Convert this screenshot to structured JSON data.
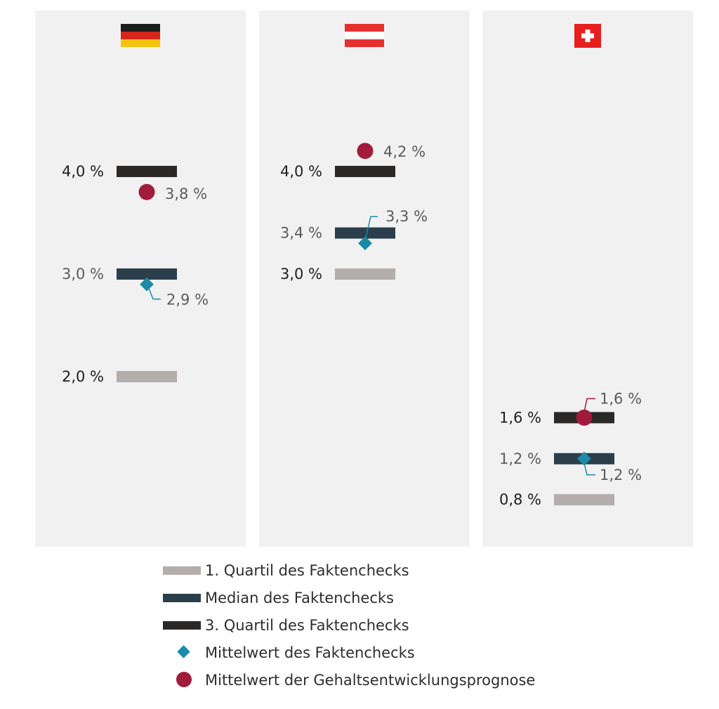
{
  "colors": {
    "panel": "#f1f1f1",
    "q1": "#b3adab",
    "median": "#2a3f4b",
    "q3": "#2a2928",
    "mean": "#1a8aa8",
    "forecast": "#a01c3a",
    "label_dark": "#1f1f1f",
    "label_muted": "#5b5b5b"
  },
  "chart_data": {
    "type": "range-markers",
    "panels": [
      {
        "country": "Deutschland",
        "flag_icon": "germany-flag-icon",
        "q1": 2.0,
        "q1_label": "2,0 %",
        "median": 3.0,
        "median_label": "3,0 %",
        "q3": 4.0,
        "q3_label": "4,0 %",
        "mean": 2.9,
        "mean_label": "2,9 %",
        "forecast": 3.8,
        "forecast_label": "3,8 %"
      },
      {
        "country": "Österreich",
        "flag_icon": "austria-flag-icon",
        "q1": 3.0,
        "q1_label": "3,0 %",
        "median": 3.4,
        "median_label": "3,4 %",
        "q3": 4.0,
        "q3_label": "4,0 %",
        "mean": 3.3,
        "mean_label": "3,3 %",
        "forecast": 4.2,
        "forecast_label": "4,2 %"
      },
      {
        "country": "Schweiz",
        "flag_icon": "switzerland-flag-icon",
        "q1": 0.8,
        "q1_label": "0,8 %",
        "median": 1.2,
        "median_label": "1,2 %",
        "q3": 1.6,
        "q3_label": "1,6 %",
        "mean": 1.2,
        "mean_label": "1,2 %",
        "forecast": 1.6,
        "forecast_label": "1,6 %"
      }
    ]
  },
  "legend": {
    "q1": "1. Quartil des Faktenchecks",
    "median": "Median des Faktenchecks",
    "q3": "3. Quartil des Faktenchecks",
    "mean": "Mittelwert des Faktenchecks",
    "forecast": "Mittelwert der Gehaltsentwicklungsprognose"
  }
}
